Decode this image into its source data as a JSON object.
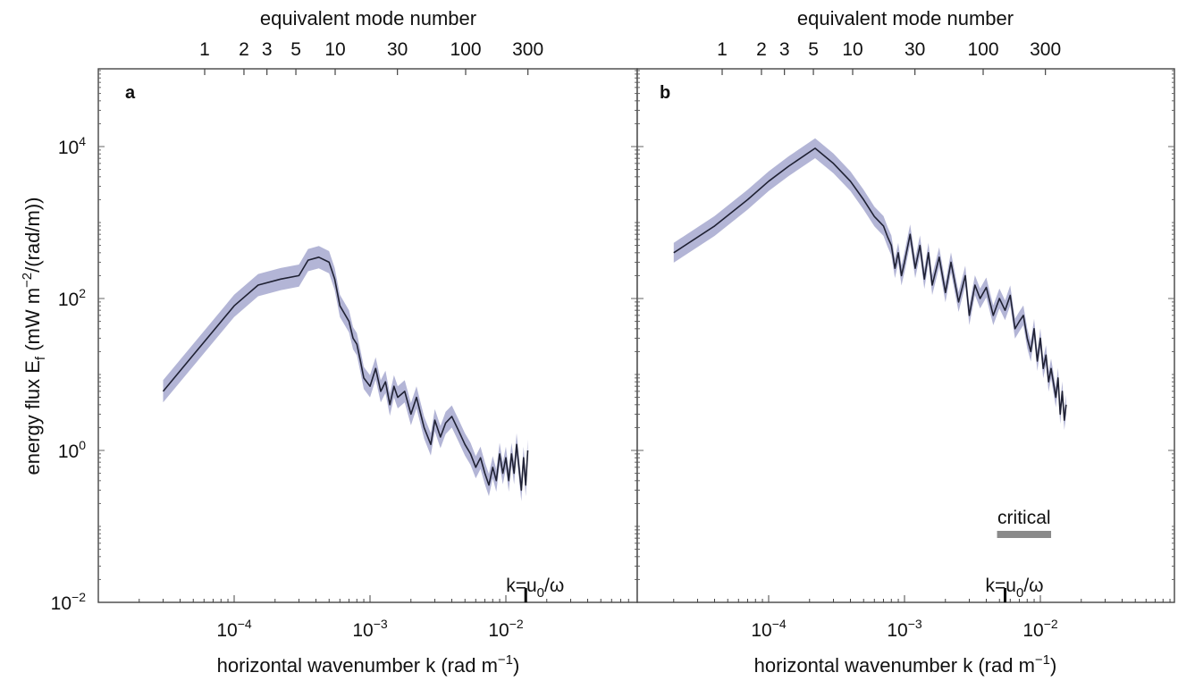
{
  "chart_data": [
    {
      "panel": "a",
      "type": "line",
      "x_scale": "log",
      "y_scale": "log",
      "xlim": [
        1.5e-05,
        0.1
      ],
      "ylim": [
        0.01,
        100000
      ],
      "xlabel": "horizontal wavenumber k (rad m⁻¹)",
      "ylabel": "energy flux E_f (mW m⁻²/(rad/m))",
      "top_axis_label": "equivalent mode number",
      "x_ticks": [
        0.0001,
        0.001,
        0.01
      ],
      "x_tick_labels": [
        "10⁻⁴",
        "10⁻³",
        "10⁻²"
      ],
      "y_ticks": [
        0.01,
        1,
        100,
        10000
      ],
      "y_tick_labels": [
        "10⁻²",
        "10⁰",
        "10²",
        "10⁴"
      ],
      "top_ticks": [
        1,
        2,
        3,
        5,
        10,
        30,
        100,
        300
      ],
      "top_tick_labels": [
        "1",
        "2",
        "3",
        "5",
        "10",
        "30",
        "100",
        "300"
      ],
      "series": [
        {
          "color": "#1f2133",
          "band_color": "#9a9cc8",
          "x": [
            3e-05,
            5e-05,
            0.0001,
            0.00015,
            0.00022,
            0.0003,
            0.00035,
            0.00042,
            0.0005,
            0.00055,
            0.0006,
            0.0007,
            0.00075,
            0.0008,
            0.00085,
            0.0009,
            0.001,
            0.0011,
            0.0012,
            0.0013,
            0.0014,
            0.0015,
            0.0016,
            0.0018,
            0.002,
            0.0022,
            0.0025,
            0.0028,
            0.003,
            0.0033,
            0.0036,
            0.004,
            0.0045,
            0.005,
            0.0055,
            0.006,
            0.0065,
            0.007,
            0.0075,
            0.008,
            0.0085,
            0.009,
            0.0095,
            0.01,
            0.0105,
            0.011,
            0.0115,
            0.012,
            0.013,
            0.0135,
            0.014,
            0.0145
          ],
          "y": [
            6,
            18,
            80,
            150,
            180,
            200,
            320,
            350,
            300,
            180,
            80,
            50,
            30,
            25,
            15,
            9,
            7,
            12,
            6,
            8,
            4,
            7,
            5,
            6,
            3,
            5,
            2,
            1.2,
            2.5,
            1.5,
            2.3,
            2.8,
            1.8,
            1.2,
            0.9,
            0.6,
            0.8,
            0.5,
            0.35,
            0.6,
            0.4,
            0.9,
            0.5,
            0.8,
            0.4,
            0.9,
            0.5,
            1.2,
            0.3,
            0.8,
            0.35,
            1.0
          ],
          "band_factor": 1.4
        }
      ],
      "marker": {
        "x": 0.014,
        "label": "k=u₀/ω"
      }
    },
    {
      "panel": "b",
      "type": "line",
      "x_scale": "log",
      "y_scale": "log",
      "xlim": [
        1.5e-05,
        0.1
      ],
      "ylim": [
        0.01,
        100000
      ],
      "xlabel": "horizontal wavenumber k (rad m⁻¹)",
      "top_axis_label": "equivalent mode number",
      "x_ticks": [
        0.0001,
        0.001,
        0.01
      ],
      "x_tick_labels": [
        "10⁻⁴",
        "10⁻³",
        "10⁻²"
      ],
      "top_ticks": [
        1,
        2,
        3,
        5,
        10,
        30,
        100,
        300
      ],
      "top_tick_labels": [
        "1",
        "2",
        "3",
        "5",
        "10",
        "30",
        "100",
        "300"
      ],
      "series": [
        {
          "color": "#1f2133",
          "band_color": "#9a9cc8",
          "x": [
            2e-05,
            4e-05,
            7e-05,
            0.0001,
            0.00014,
            0.00022,
            0.0003,
            0.0004,
            0.0005,
            0.0006,
            0.0007,
            0.00075,
            0.0008,
            0.00085,
            0.0009,
            0.00095,
            0.001,
            0.0011,
            0.0012,
            0.0013,
            0.0014,
            0.0015,
            0.0016,
            0.0018,
            0.002,
            0.0022,
            0.0025,
            0.0028,
            0.003,
            0.0033,
            0.0036,
            0.004,
            0.0045,
            0.005,
            0.0055,
            0.006,
            0.0065,
            0.007,
            0.0075,
            0.008,
            0.0085,
            0.009,
            0.0095,
            0.01,
            0.0105,
            0.011,
            0.0115,
            0.012,
            0.013,
            0.0135,
            0.014,
            0.0145,
            0.015,
            0.0155
          ],
          "y": [
            400,
            900,
            2000,
            3500,
            5500,
            9500,
            6000,
            3500,
            2000,
            1200,
            900,
            650,
            500,
            250,
            400,
            200,
            300,
            700,
            250,
            500,
            180,
            400,
            150,
            350,
            120,
            300,
            90,
            200,
            60,
            150,
            100,
            140,
            60,
            100,
            70,
            110,
            40,
            50,
            60,
            30,
            20,
            40,
            15,
            30,
            12,
            18,
            8,
            12,
            5,
            9,
            3,
            6,
            2.5,
            4
          ],
          "band_factor": 1.35
        }
      ],
      "marker": {
        "x": 0.0055,
        "label": "k=u₀/ω"
      },
      "annotation": {
        "text": "critical",
        "x_start": 0.0048,
        "x_end": 0.012
      }
    }
  ]
}
